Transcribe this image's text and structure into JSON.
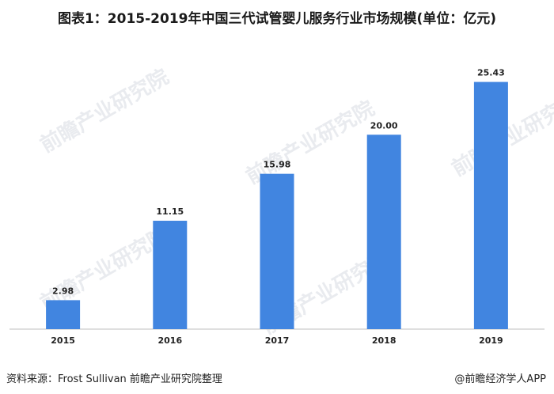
{
  "chart_data": {
    "type": "bar",
    "title": "图表1：2015-2019年中国三代试管婴儿服务行业市场规模(单位：亿元)",
    "categories": [
      "2015",
      "2016",
      "2017",
      "2018",
      "2019"
    ],
    "values": [
      2.98,
      11.15,
      15.98,
      20.0,
      25.43
    ],
    "value_labels": [
      "2.98",
      "11.15",
      "15.98",
      "20.00",
      "25.43"
    ],
    "xlabel": "",
    "ylabel": "",
    "ylim": [
      0,
      28
    ],
    "grid": false,
    "legend": "none",
    "bar_color": "#4185e0"
  },
  "footer": {
    "source": "资料来源：Frost Sullivan 前瞻产业研究院整理",
    "brand": "@前瞻经济学人APP"
  },
  "watermark_text": "前瞻产业研究院"
}
